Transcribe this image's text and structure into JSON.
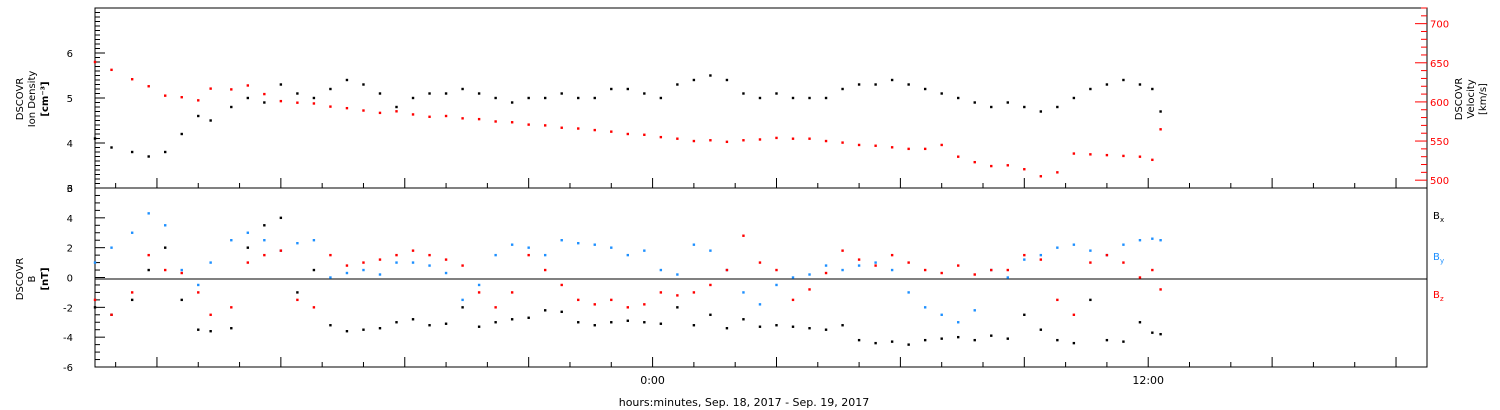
{
  "chart_data": [
    {
      "type": "scatter",
      "panel": "top",
      "ylabel_left": [
        "DSCOVR",
        "Ion Density",
        "[cm⁻³]"
      ],
      "ylabel_right": [
        "DSCOVR",
        "Velocity",
        "[km/s]"
      ],
      "ylim_left": [
        3,
        7
      ],
      "ylim_right": [
        490,
        720
      ],
      "yticks_left": [
        "3",
        "4",
        "5",
        "6"
      ],
      "yticks_right": [
        "500",
        "550",
        "600",
        "650",
        "700"
      ],
      "colors": {
        "density": "#000000",
        "velocity": "#ff0000"
      },
      "series": [
        {
          "axis": "left",
          "color": "#000000",
          "x": [
            -13.5,
            -13.1,
            -12.6,
            -12.2,
            -11.8,
            -11.4,
            -11.0,
            -10.7,
            -10.2,
            -9.8,
            -9.4,
            -9.0,
            -8.6,
            -8.2,
            -7.8,
            -7.4,
            -7.0,
            -6.6,
            -6.2,
            -5.8,
            -5.4,
            -5.0,
            -4.6,
            -4.2,
            -3.8,
            -3.4,
            -3.0,
            -2.6,
            -2.2,
            -1.8,
            -1.4,
            -1.0,
            -0.6,
            -0.2,
            0.2,
            0.6,
            1.0,
            1.4,
            1.8,
            2.2,
            2.6,
            3.0,
            3.4,
            3.8,
            4.2,
            4.6,
            5.0,
            5.4,
            5.8,
            6.2,
            6.6,
            7.0,
            7.4,
            7.8,
            8.2,
            8.6,
            9.0,
            9.4,
            9.8,
            10.2,
            10.6,
            11.0,
            11.4,
            11.8,
            12.1,
            12.3
          ],
          "values": [
            4.1,
            3.9,
            3.8,
            3.7,
            3.8,
            4.2,
            4.6,
            4.5,
            4.8,
            5.0,
            4.9,
            5.3,
            5.1,
            5.0,
            5.2,
            5.4,
            5.3,
            5.1,
            4.8,
            5.0,
            5.1,
            5.1,
            5.2,
            5.1,
            5.0,
            4.9,
            5.0,
            5.0,
            5.1,
            5.0,
            5.0,
            5.2,
            5.2,
            5.1,
            5.0,
            5.3,
            5.4,
            5.5,
            5.4,
            5.1,
            5.0,
            5.1,
            5.0,
            5.0,
            5.0,
            5.2,
            5.3,
            5.3,
            5.4,
            5.3,
            5.2,
            5.1,
            5.0,
            4.9,
            4.8,
            4.9,
            4.8,
            4.7,
            4.8,
            5.0,
            5.2,
            5.3,
            5.4,
            5.3,
            5.2,
            4.7
          ]
        },
        {
          "axis": "right",
          "color": "#ff0000",
          "x": [
            -13.5,
            -13.1,
            -12.6,
            -12.2,
            -11.8,
            -11.4,
            -11.0,
            -10.7,
            -10.2,
            -9.8,
            -9.4,
            -9.0,
            -8.6,
            -8.2,
            -7.8,
            -7.4,
            -7.0,
            -6.6,
            -6.2,
            -5.8,
            -5.4,
            -5.0,
            -4.6,
            -4.2,
            -3.8,
            -3.4,
            -3.0,
            -2.6,
            -2.2,
            -1.8,
            -1.4,
            -1.0,
            -0.6,
            -0.2,
            0.2,
            0.6,
            1.0,
            1.4,
            1.8,
            2.2,
            2.6,
            3.0,
            3.4,
            3.8,
            4.2,
            4.6,
            5.0,
            5.4,
            5.8,
            6.2,
            6.6,
            7.0,
            7.4,
            7.8,
            8.2,
            8.6,
            9.0,
            9.4,
            9.8,
            10.2,
            10.6,
            11.0,
            11.4,
            11.8,
            12.1,
            12.3
          ],
          "values": [
            651,
            641,
            629,
            620,
            608,
            606,
            602,
            617,
            616,
            621,
            610,
            601,
            599,
            598,
            594,
            592,
            589,
            586,
            588,
            584,
            581,
            582,
            579,
            578,
            575,
            574,
            571,
            570,
            567,
            566,
            564,
            562,
            559,
            558,
            555,
            553,
            550,
            551,
            549,
            551,
            552,
            554,
            553,
            553,
            550,
            548,
            545,
            544,
            542,
            540,
            540,
            545,
            530,
            523,
            518,
            519,
            514,
            505,
            510,
            534,
            533,
            532,
            531,
            530,
            526,
            565
          ]
        }
      ]
    },
    {
      "type": "scatter",
      "panel": "bottom",
      "ylabel_left": [
        "DSCOVR",
        "B",
        "[nT]"
      ],
      "ylim": [
        -6,
        6
      ],
      "yticks": [
        "-6",
        "-4",
        "-2",
        "0",
        "2",
        "4",
        "6"
      ],
      "xlabel": "hours:minutes, Sep. 18, 2017 - Sep. 19, 2017",
      "xlim": [
        -13.5,
        18.75
      ],
      "xticks": [
        {
          "x": 0,
          "label": "0:00"
        },
        {
          "x": 12,
          "label": "12:00"
        }
      ],
      "legend": [
        {
          "label": "B",
          "sub": "x",
          "color": "#000000"
        },
        {
          "label": "B",
          "sub": "y",
          "color": "#1e90ff"
        },
        {
          "label": "B",
          "sub": "z",
          "color": "#ff0000"
        }
      ],
      "legend_placement": "right",
      "series": [
        {
          "name": "Bx",
          "color": "#000000",
          "x": [
            -13.5,
            -13.1,
            -12.6,
            -12.2,
            -11.8,
            -11.4,
            -11.0,
            -10.7,
            -10.2,
            -9.8,
            -9.4,
            -9.0,
            -8.6,
            -8.2,
            -7.8,
            -7.4,
            -7.0,
            -6.6,
            -6.2,
            -5.8,
            -5.4,
            -5.0,
            -4.6,
            -4.2,
            -3.8,
            -3.4,
            -3.0,
            -2.6,
            -2.2,
            -1.8,
            -1.4,
            -1.0,
            -0.6,
            -0.2,
            0.2,
            0.6,
            1.0,
            1.4,
            1.8,
            2.2,
            2.6,
            3.0,
            3.4,
            3.8,
            4.2,
            4.6,
            5.0,
            5.4,
            5.8,
            6.2,
            6.6,
            7.0,
            7.4,
            7.8,
            8.2,
            8.6,
            9.0,
            9.4,
            9.8,
            10.2,
            10.6,
            11.0,
            11.4,
            11.8,
            12.1,
            12.3
          ],
          "values": [
            -2.0,
            -2.5,
            -1.5,
            0.5,
            2.0,
            -1.5,
            -3.5,
            -3.6,
            -3.4,
            2.0,
            3.5,
            4.0,
            -1.0,
            0.5,
            -3.2,
            -3.6,
            -3.5,
            -3.4,
            -3.0,
            -2.8,
            -3.2,
            -3.1,
            -2.0,
            -3.3,
            -3.0,
            -2.8,
            -2.7,
            -2.2,
            -2.3,
            -3.0,
            -3.2,
            -3.0,
            -2.9,
            -3.0,
            -3.1,
            -2.0,
            -3.2,
            -2.5,
            -3.4,
            -2.8,
            -3.3,
            -3.2,
            -3.3,
            -3.4,
            -3.5,
            -3.2,
            -4.2,
            -4.4,
            -4.3,
            -4.5,
            -4.2,
            -4.1,
            -4.0,
            -4.2,
            -3.9,
            -4.1,
            -2.5,
            -3.5,
            -4.2,
            -4.4,
            -1.5,
            -4.2,
            -4.3,
            -3.0,
            -3.7,
            -3.8
          ]
        },
        {
          "name": "By",
          "color": "#1e90ff",
          "x": [
            -13.5,
            -13.1,
            -12.6,
            -12.2,
            -11.8,
            -11.4,
            -11.0,
            -10.7,
            -10.2,
            -9.8,
            -9.4,
            -9.0,
            -8.6,
            -8.2,
            -7.8,
            -7.4,
            -7.0,
            -6.6,
            -6.2,
            -5.8,
            -5.4,
            -5.0,
            -4.6,
            -4.2,
            -3.8,
            -3.4,
            -3.0,
            -2.6,
            -2.2,
            -1.8,
            -1.4,
            -1.0,
            -0.6,
            -0.2,
            0.2,
            0.6,
            1.0,
            1.4,
            1.8,
            2.2,
            2.6,
            3.0,
            3.4,
            3.8,
            4.2,
            4.6,
            5.0,
            5.4,
            5.8,
            6.2,
            6.6,
            7.0,
            7.4,
            7.8,
            8.2,
            8.6,
            9.0,
            9.4,
            9.8,
            10.2,
            10.6,
            11.0,
            11.4,
            11.8,
            12.1,
            12.3
          ],
          "values": [
            1.0,
            2.0,
            3.0,
            4.3,
            3.5,
            0.5,
            -0.5,
            1.0,
            2.5,
            3.0,
            2.5,
            1.8,
            2.3,
            2.5,
            0.0,
            0.3,
            0.5,
            0.2,
            1.0,
            1.0,
            0.8,
            0.3,
            -1.5,
            -0.5,
            1.5,
            2.2,
            2.0,
            1.5,
            2.5,
            2.3,
            2.2,
            2.0,
            1.5,
            1.8,
            0.5,
            0.2,
            2.2,
            1.8,
            0.5,
            -1.0,
            -1.8,
            -0.5,
            0.0,
            0.2,
            0.8,
            0.5,
            0.8,
            1.0,
            0.5,
            -1.0,
            -2.0,
            -2.5,
            -3.0,
            -2.2,
            0.5,
            0.0,
            1.2,
            1.5,
            2.0,
            2.2,
            1.8,
            1.5,
            2.2,
            2.5,
            2.6,
            2.5
          ]
        },
        {
          "name": "Bz",
          "color": "#ff0000",
          "x": [
            -13.5,
            -13.1,
            -12.6,
            -12.2,
            -11.8,
            -11.4,
            -11.0,
            -10.7,
            -10.2,
            -9.8,
            -9.4,
            -9.0,
            -8.6,
            -8.2,
            -7.8,
            -7.4,
            -7.0,
            -6.6,
            -6.2,
            -5.8,
            -5.4,
            -5.0,
            -4.6,
            -4.2,
            -3.8,
            -3.4,
            -3.0,
            -2.6,
            -2.2,
            -1.8,
            -1.4,
            -1.0,
            -0.6,
            -0.2,
            0.2,
            0.6,
            1.0,
            1.4,
            1.8,
            2.2,
            2.6,
            3.0,
            3.4,
            3.8,
            4.2,
            4.6,
            5.0,
            5.4,
            5.8,
            6.2,
            6.6,
            7.0,
            7.4,
            7.8,
            8.2,
            8.6,
            9.0,
            9.4,
            9.8,
            10.2,
            10.6,
            11.0,
            11.4,
            11.8,
            12.1,
            12.3
          ],
          "values": [
            -1.5,
            -2.5,
            -1.0,
            1.5,
            0.5,
            0.3,
            -1.0,
            -2.5,
            -2.0,
            1.0,
            1.5,
            1.8,
            -1.5,
            -2.0,
            1.5,
            0.8,
            1.0,
            1.2,
            1.5,
            1.8,
            1.5,
            1.2,
            0.8,
            -1.0,
            -2.0,
            -1.0,
            1.5,
            0.5,
            -0.5,
            -1.5,
            -1.8,
            -1.5,
            -2.0,
            -1.8,
            -1.0,
            -1.2,
            -1.0,
            -0.5,
            0.5,
            2.8,
            1.0,
            0.5,
            -1.5,
            -0.8,
            0.3,
            1.8,
            1.2,
            0.8,
            1.5,
            1.0,
            0.5,
            0.3,
            0.8,
            0.2,
            0.5,
            0.5,
            1.5,
            1.2,
            -1.5,
            -2.5,
            1.0,
            1.5,
            1.0,
            0.0,
            0.5,
            -0.8
          ]
        }
      ]
    }
  ]
}
